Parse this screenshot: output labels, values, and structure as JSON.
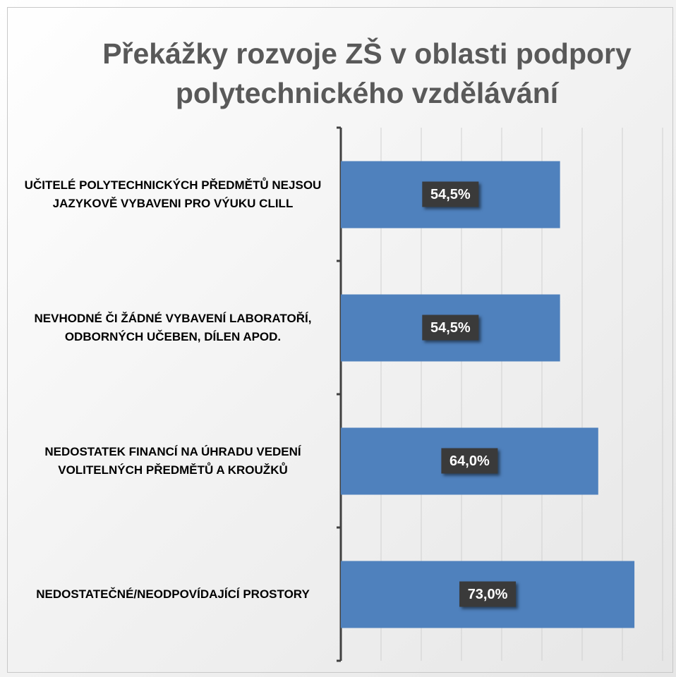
{
  "chart_data": {
    "type": "barh",
    "title": "Překážky rozvoje ZŠ v oblasti podpory polytechnického vzdělávání",
    "categories": [
      "UČITELÉ POLYTECHNICKÝCH PŘEDMĚTŮ NEJSOU JAZYKOVĚ VYBAVENI PRO VÝUKU CLILL",
      "NEVHODNÉ ČI ŽÁDNÉ VYBAVENÍ LABORATOŘÍ, ODBORNÝCH UČEBEN, DÍLEN APOD.",
      "NEDOSTATEK FINANCÍ NA ÚHRADU VEDENÍ VOLITELNÝCH PŘEDMĚTŮ A KROUŽKŮ",
      "NEDOSTATEČNÉ/NEODPOVÍDAJÍCÍ PROSTORY"
    ],
    "values": [
      54.5,
      54.5,
      64.0,
      73.0
    ],
    "value_labels": [
      "54,5%",
      "54,5%",
      "64,0%",
      "73,0%"
    ],
    "color": "#4f81bd",
    "xlim": [
      0,
      80
    ],
    "xticks": [
      0,
      10,
      20,
      30,
      40,
      50,
      60,
      70,
      80
    ],
    "grid": true
  }
}
